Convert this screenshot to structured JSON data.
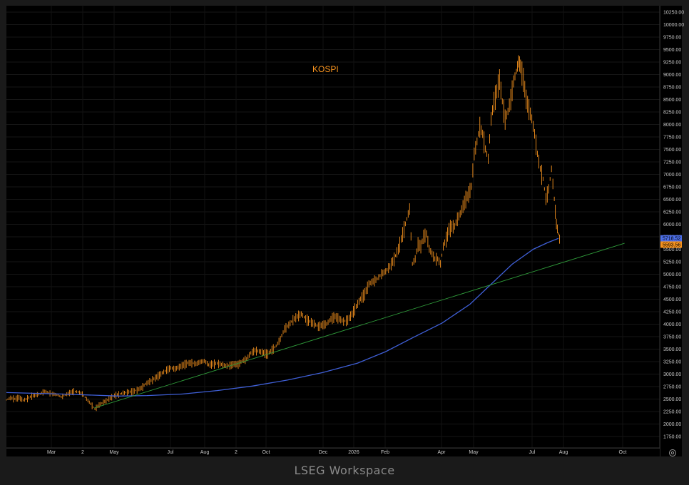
{
  "watermark": "LSEG Workspace",
  "chart_data": {
    "type": "ohlc",
    "title": "KOSPI",
    "xlabel": "",
    "ylabel": "",
    "x_ticks": [
      "Mar",
      "2",
      "May",
      "Jul",
      "Aug",
      "2",
      "Oct",
      "Dec",
      "2026",
      "Feb",
      "Apr",
      "May",
      "Jul",
      "Aug",
      "Oct"
    ],
    "y_ticks": [
      "1750.00",
      "2000.00",
      "2250.00",
      "2500.00",
      "2750.00",
      "3000.00",
      "3250.00",
      "3500.00",
      "3750.00",
      "4000.00",
      "4250.00",
      "4500.00",
      "4750.00",
      "5000.00",
      "5250.00",
      "5500.00",
      "5750.00",
      "6000.00",
      "6250.00",
      "6500.00",
      "6750.00",
      "7000.00",
      "7250.00",
      "7500.00",
      "7750.00",
      "8000.00",
      "8250.00",
      "8500.00",
      "8750.00",
      "9000.00",
      "9250.00",
      "9500.00",
      "9750.00",
      "10000.00",
      "10250.00"
    ],
    "ylim": [
      1500,
      10350
    ],
    "series": [
      {
        "style": "ohlc",
        "color": "#f7931e",
        "points": [
          [
            0,
            2480
          ],
          [
            6,
            2520
          ],
          [
            12,
            2500
          ],
          [
            18,
            2530
          ],
          [
            24,
            2470
          ],
          [
            30,
            2510
          ],
          [
            36,
            2560
          ],
          [
            42,
            2580
          ],
          [
            48,
            2600
          ],
          [
            54,
            2650
          ],
          [
            60,
            2620
          ],
          [
            66,
            2600
          ],
          [
            72,
            2580
          ],
          [
            78,
            2540
          ],
          [
            84,
            2580
          ],
          [
            90,
            2620
          ],
          [
            96,
            2650
          ],
          [
            102,
            2640
          ],
          [
            108,
            2600
          ],
          [
            114,
            2500
          ],
          [
            120,
            2400
          ],
          [
            126,
            2300
          ],
          [
            132,
            2380
          ],
          [
            138,
            2430
          ],
          [
            144,
            2480
          ],
          [
            150,
            2540
          ],
          [
            156,
            2580
          ],
          [
            162,
            2600
          ],
          [
            168,
            2620
          ],
          [
            174,
            2640
          ],
          [
            180,
            2650
          ],
          [
            186,
            2680
          ],
          [
            192,
            2720
          ],
          [
            198,
            2800
          ],
          [
            204,
            2850
          ],
          [
            210,
            2900
          ],
          [
            216,
            2960
          ],
          [
            222,
            3020
          ],
          [
            228,
            3080
          ],
          [
            234,
            3120
          ],
          [
            240,
            3100
          ],
          [
            246,
            3140
          ],
          [
            252,
            3180
          ],
          [
            258,
            3220
          ],
          [
            264,
            3220
          ],
          [
            270,
            3200
          ],
          [
            276,
            3240
          ],
          [
            282,
            3260
          ],
          [
            288,
            3180
          ],
          [
            294,
            3200
          ],
          [
            300,
            3210
          ],
          [
            306,
            3190
          ],
          [
            312,
            3160
          ],
          [
            318,
            3170
          ],
          [
            324,
            3200
          ],
          [
            330,
            3190
          ],
          [
            336,
            3260
          ],
          [
            342,
            3300
          ],
          [
            348,
            3420
          ],
          [
            354,
            3470
          ],
          [
            360,
            3450
          ],
          [
            366,
            3420
          ],
          [
            372,
            3400
          ],
          [
            378,
            3480
          ],
          [
            384,
            3560
          ],
          [
            390,
            3700
          ],
          [
            396,
            3900
          ],
          [
            402,
            3980
          ],
          [
            408,
            4080
          ],
          [
            414,
            4150
          ],
          [
            420,
            4200
          ],
          [
            426,
            4100
          ],
          [
            432,
            4050
          ],
          [
            438,
            4000
          ],
          [
            444,
            3950
          ],
          [
            450,
            3980
          ],
          [
            456,
            4000
          ],
          [
            462,
            4100
          ],
          [
            468,
            4150
          ],
          [
            474,
            4100
          ],
          [
            480,
            4050
          ],
          [
            486,
            4080
          ],
          [
            492,
            4200
          ],
          [
            498,
            4350
          ],
          [
            504,
            4500
          ],
          [
            510,
            4600
          ],
          [
            516,
            4800
          ],
          [
            522,
            4850
          ],
          [
            528,
            4900
          ],
          [
            534,
            5000
          ],
          [
            540,
            5050
          ],
          [
            546,
            5150
          ],
          [
            552,
            5300
          ],
          [
            558,
            5500
          ],
          [
            564,
            5800
          ],
          [
            570,
            6100
          ],
          [
            574,
            6300
          ],
          [
            578,
            5200
          ],
          [
            582,
            5300
          ],
          [
            586,
            5600
          ],
          [
            590,
            5550
          ],
          [
            594,
            5750
          ],
          [
            598,
            5800
          ],
          [
            602,
            5500
          ],
          [
            606,
            5400
          ],
          [
            610,
            5300
          ],
          [
            614,
            5300
          ],
          [
            618,
            5200
          ],
          [
            622,
            5550
          ],
          [
            626,
            5700
          ],
          [
            630,
            5900
          ],
          [
            634,
            5950
          ],
          [
            638,
            5950
          ],
          [
            642,
            6100
          ],
          [
            646,
            6200
          ],
          [
            650,
            6350
          ],
          [
            654,
            6500
          ],
          [
            658,
            6600
          ],
          [
            662,
            6750
          ],
          [
            666,
            7400
          ],
          [
            670,
            7650
          ],
          [
            674,
            7950
          ],
          [
            678,
            7800
          ],
          [
            682,
            7500
          ],
          [
            686,
            7300
          ],
          [
            690,
            8100
          ],
          [
            694,
            8450
          ],
          [
            698,
            8650
          ],
          [
            702,
            8900
          ],
          [
            706,
            8450
          ],
          [
            710,
            8100
          ],
          [
            714,
            8250
          ],
          [
            718,
            8500
          ],
          [
            722,
            8850
          ],
          [
            726,
            9050
          ],
          [
            729,
            9250
          ],
          [
            732,
            9150
          ],
          [
            736,
            8900
          ],
          [
            740,
            8500
          ],
          [
            744,
            8300
          ],
          [
            748,
            8100
          ],
          [
            752,
            7800
          ],
          [
            756,
            7400
          ],
          [
            760,
            7100
          ],
          [
            764,
            6900
          ],
          [
            768,
            6500
          ],
          [
            772,
            6700
          ],
          [
            776,
            7100
          ],
          [
            780,
            6500
          ],
          [
            783,
            6000
          ],
          [
            786,
            5800
          ],
          [
            789,
            5593.56
          ]
        ]
      },
      {
        "style": "line",
        "color": "#3f5fd6",
        "points": [
          [
            0,
            2630
          ],
          [
            80,
            2600
          ],
          [
            160,
            2560
          ],
          [
            200,
            2570
          ],
          [
            250,
            2600
          ],
          [
            300,
            2670
          ],
          [
            350,
            2760
          ],
          [
            400,
            2880
          ],
          [
            450,
            3030
          ],
          [
            500,
            3220
          ],
          [
            540,
            3450
          ],
          [
            580,
            3740
          ],
          [
            620,
            4020
          ],
          [
            660,
            4400
          ],
          [
            690,
            4800
          ],
          [
            720,
            5200
          ],
          [
            750,
            5500
          ],
          [
            770,
            5630
          ],
          [
            786,
            5718.52
          ]
        ]
      },
      {
        "style": "line",
        "color": "#2f9a3a",
        "points": [
          [
            125,
            2320
          ],
          [
            880,
            5620
          ]
        ]
      }
    ],
    "price_labels": [
      {
        "value": 5718.52,
        "text": "5718.52",
        "color": "#4d6fe8"
      },
      {
        "value": 5593.56,
        "text": "5593.56",
        "color": "#f7931e"
      }
    ]
  }
}
